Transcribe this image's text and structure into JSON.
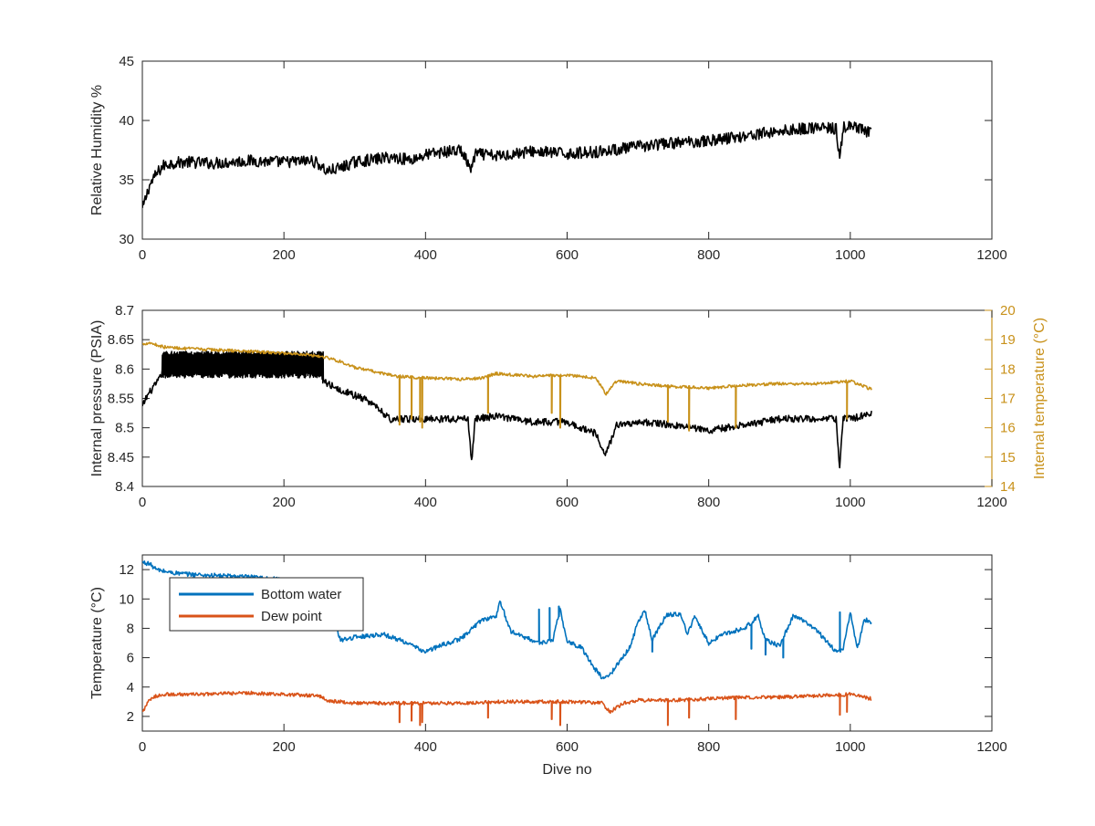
{
  "chart_data": [
    {
      "type": "line",
      "id": "humidity",
      "xlabel": "",
      "ylabel": "Relative Humidity %",
      "xlim": [
        0,
        1200
      ],
      "ylim": [
        30,
        45
      ],
      "xticks": [
        0,
        200,
        400,
        600,
        800,
        1000,
        1200
      ],
      "yticks": [
        30,
        35,
        40,
        45
      ],
      "series": [
        {
          "color": "#000000",
          "noise": 0.5,
          "x": [
            0,
            5,
            10,
            20,
            30,
            40,
            60,
            100,
            150,
            200,
            240,
            250,
            260,
            280,
            300,
            350,
            380,
            400,
            420,
            450,
            465,
            470,
            500,
            550,
            600,
            650,
            700,
            750,
            800,
            850,
            900,
            950,
            980,
            985,
            990,
            1000,
            1020,
            1030
          ],
          "y": [
            32.5,
            33.5,
            34.5,
            35.5,
            36.2,
            36.4,
            36.5,
            36.4,
            36.6,
            36.5,
            36.6,
            36.3,
            35.7,
            36.0,
            36.5,
            36.9,
            36.7,
            37.1,
            37.3,
            37.5,
            35.8,
            37.2,
            37.0,
            37.4,
            37.2,
            37.4,
            37.8,
            38.1,
            38.3,
            38.7,
            39.1,
            39.4,
            39.3,
            36.6,
            39.4,
            39.5,
            39.1,
            38.9
          ]
        }
      ]
    },
    {
      "type": "line",
      "id": "pressure",
      "xlabel": "",
      "ylabel": "Internal pressure (PSIA)",
      "y2label": "Internal temperature (°C)",
      "xlim": [
        0,
        1200
      ],
      "ylim": [
        8.4,
        8.7
      ],
      "y2lim": [
        14,
        20
      ],
      "xticks": [
        0,
        200,
        400,
        600,
        800,
        1000,
        1200
      ],
      "yticks": [
        8.4,
        8.45,
        8.5,
        8.55,
        8.6,
        8.65,
        8.7
      ],
      "y2ticks": [
        14,
        15,
        16,
        17,
        18,
        19,
        20
      ],
      "series": [
        {
          "axis": "left",
          "color": "#000000",
          "noise": 0.006,
          "x": [
            0,
            5,
            10,
            20,
            25,
            30,
            35,
            60,
            100,
            150,
            200,
            250,
            255,
            270,
            300,
            320,
            340,
            350,
            400,
            460,
            465,
            470,
            500,
            550,
            600,
            640,
            655,
            670,
            700,
            750,
            800,
            850,
            900,
            950,
            980,
            985,
            990,
            1000,
            1030
          ],
          "y": [
            8.535,
            8.55,
            8.56,
            8.575,
            8.585,
            8.6,
            8.605,
            8.605,
            8.605,
            8.605,
            8.605,
            8.605,
            8.58,
            8.57,
            8.555,
            8.545,
            8.525,
            8.515,
            8.515,
            8.515,
            8.44,
            8.515,
            8.52,
            8.51,
            8.51,
            8.49,
            8.455,
            8.505,
            8.51,
            8.505,
            8.495,
            8.505,
            8.515,
            8.515,
            8.515,
            8.43,
            8.515,
            8.515,
            8.525
          ],
          "band": {
            "from": 28,
            "to": 255,
            "low": 8.585,
            "high": 8.63
          }
        },
        {
          "axis": "right",
          "color": "#c8911a",
          "noise": 0.05,
          "x": [
            0,
            10,
            30,
            60,
            150,
            230,
            260,
            280,
            300,
            320,
            340,
            360,
            400,
            450,
            480,
            500,
            550,
            600,
            640,
            655,
            670,
            700,
            750,
            800,
            850,
            900,
            950,
            1000,
            1030
          ],
          "y": [
            18.85,
            18.9,
            18.75,
            18.7,
            18.6,
            18.5,
            18.4,
            18.25,
            18.05,
            17.95,
            17.85,
            17.75,
            17.7,
            17.65,
            17.7,
            17.85,
            17.75,
            17.8,
            17.7,
            17.15,
            17.6,
            17.5,
            17.4,
            17.35,
            17.45,
            17.5,
            17.5,
            17.6,
            17.3
          ],
          "spikes": [
            [
              363,
              16.1
            ],
            [
              380,
              16.3
            ],
            [
              392,
              16.2
            ],
            [
              395,
              16.0
            ],
            [
              488,
              16.5
            ],
            [
              578,
              16.5
            ],
            [
              590,
              16.0
            ],
            [
              742,
              16.2
            ],
            [
              772,
              15.9
            ],
            [
              838,
              16.0
            ],
            [
              995,
              16.3
            ]
          ]
        }
      ]
    },
    {
      "type": "line",
      "id": "temperature",
      "xlabel": "Dive no",
      "ylabel": "Temperature (°C)",
      "xlim": [
        0,
        1200
      ],
      "ylim": [
        1,
        13
      ],
      "xticks": [
        0,
        200,
        400,
        600,
        800,
        1000,
        1200
      ],
      "yticks": [
        2,
        4,
        6,
        8,
        10,
        12
      ],
      "legend": {
        "location": "top-left",
        "entries": [
          "Bottom water",
          "Dew point"
        ]
      },
      "series": [
        {
          "name": "Bottom water",
          "color": "#0072bd",
          "noise": 0.15,
          "x": [
            0,
            10,
            20,
            40,
            60,
            100,
            150,
            200,
            250,
            280,
            300,
            340,
            370,
            390,
            400,
            420,
            450,
            480,
            500,
            505,
            520,
            540,
            560,
            580,
            590,
            600,
            620,
            640,
            650,
            660,
            690,
            700,
            710,
            720,
            740,
            760,
            770,
            780,
            800,
            820,
            850,
            870,
            880,
            900,
            920,
            950,
            980,
            990,
            1000,
            1010,
            1020,
            1030
          ],
          "y": [
            12.5,
            12.4,
            12.0,
            11.8,
            11.7,
            11.6,
            11.5,
            11.3,
            11.0,
            7.2,
            7.4,
            7.6,
            7.1,
            6.6,
            6.4,
            6.8,
            7.3,
            8.6,
            8.8,
            9.9,
            7.8,
            7.4,
            7.0,
            7.2,
            9.3,
            7.1,
            6.7,
            5.2,
            4.6,
            4.8,
            6.8,
            8.5,
            9.2,
            7.2,
            8.9,
            9.0,
            7.6,
            8.8,
            7.0,
            7.6,
            8.0,
            8.8,
            7.2,
            6.8,
            8.9,
            8.0,
            6.4,
            6.6,
            9.1,
            6.6,
            8.6,
            8.4
          ],
          "spikes": [
            [
              560,
              9.3
            ],
            [
              575,
              9.4
            ],
            [
              588,
              9.5
            ],
            [
              720,
              6.4
            ],
            [
              860,
              6.6
            ],
            [
              880,
              6.2
            ],
            [
              905,
              6.0
            ],
            [
              985,
              9.1
            ]
          ]
        },
        {
          "name": "Dew point",
          "color": "#d95319",
          "noise": 0.12,
          "x": [
            0,
            5,
            10,
            20,
            30,
            40,
            80,
            150,
            200,
            250,
            260,
            280,
            300,
            350,
            400,
            450,
            500,
            550,
            600,
            650,
            660,
            680,
            700,
            750,
            800,
            850,
            900,
            950,
            1000,
            1030
          ],
          "y": [
            2.3,
            2.7,
            3.1,
            3.4,
            3.5,
            3.5,
            3.5,
            3.6,
            3.5,
            3.4,
            3.1,
            3.0,
            2.9,
            2.9,
            2.9,
            2.9,
            3.0,
            3.0,
            3.0,
            2.9,
            2.3,
            2.9,
            3.1,
            3.1,
            3.2,
            3.3,
            3.3,
            3.4,
            3.5,
            3.2
          ],
          "spikes": [
            [
              363,
              1.6
            ],
            [
              380,
              1.7
            ],
            [
              392,
              1.4
            ],
            [
              395,
              1.6
            ],
            [
              488,
              1.9
            ],
            [
              578,
              1.8
            ],
            [
              590,
              1.4
            ],
            [
              742,
              1.4
            ],
            [
              772,
              1.9
            ],
            [
              838,
              1.8
            ],
            [
              985,
              2.1
            ],
            [
              995,
              2.3
            ]
          ]
        }
      ]
    }
  ]
}
